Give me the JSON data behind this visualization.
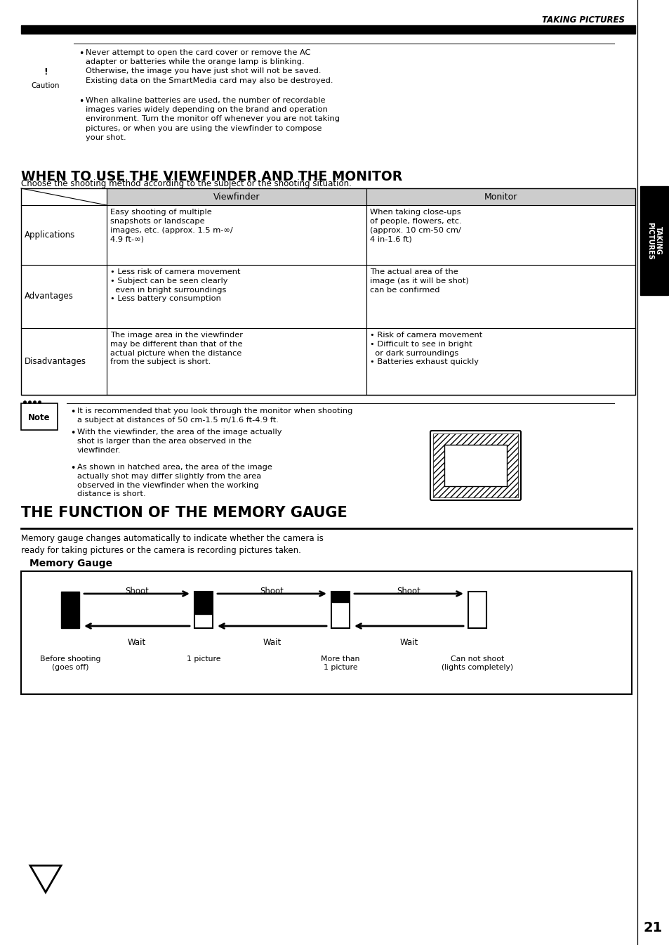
{
  "bg_color": "#ffffff",
  "page_number": "21",
  "header_text": "TAKING PICTURES",
  "caution_bullet1": "Never attempt to open the card cover or remove the AC\nadapter or batteries while the orange lamp is blinking.\nOtherwise, the image you have just shot will not be saved.\nExisting data on the SmartMedia card may also be destroyed.",
  "caution_bullet2": "When alkaline batteries are used, the number of recordable\nimages varies widely depending on the brand and operation\nenvironment. Turn the monitor off whenever you are not taking\npictures, or when you are using the viewfinder to compose\nyour shot.",
  "section1_title": "WHEN TO USE THE VIEWFINDER AND THE MONITOR",
  "table_intro": "Choose the shooting method according to the subject or the shooting situation.",
  "table_col1_header": "Viewfinder",
  "table_col2_header": "Monitor",
  "table_rows": [
    {
      "row_label": "Applications",
      "col1": "Easy shooting of multiple\nsnapshots or landscape\nimages, etc. (approx. 1.5 m-∞/\n4.9 ft-∞)",
      "col2": "When taking close-ups\nof people, flowers, etc.\n(approx. 10 cm-50 cm/\n4 in-1.6 ft)"
    },
    {
      "row_label": "Advantages",
      "col1": "• Less risk of camera movement\n• Subject can be seen clearly\n  even in bright surroundings\n• Less battery consumption",
      "col2": "The actual area of the\nimage (as it will be shot)\ncan be confirmed"
    },
    {
      "row_label": "Disadvantages",
      "col1": "The image area in the viewfinder\nmay be different than that of the\nactual picture when the distance\nfrom the subject is short.",
      "col2": "• Risk of camera movement\n• Difficult to see in bright\n  or dark surroundings\n• Batteries exhaust quickly"
    }
  ],
  "note_bullet1": "It is recommended that you look through the monitor when shooting\na subject at distances of 50 cm-1.5 m/1.6 ft-4.9 ft.",
  "note_bullet2": "With the viewfinder, the area of the image actually\nshot is larger than the area observed in the\nviewfinder.",
  "note_bullet3": "As shown in hatched area, the area of the image\nactually shot may differ slightly from the area\nobserved in the viewfinder when the working\ndistance is short.",
  "section2_title": "THE FUNCTION OF THE MEMORY GAUGE",
  "memory_intro": "Memory gauge changes automatically to indicate whether the camera is\nready for taking pictures or the camera is recording pictures taken.",
  "memory_gauge_title": "Memory Gauge",
  "side_tab_text": "TAKING\nPICTURES"
}
